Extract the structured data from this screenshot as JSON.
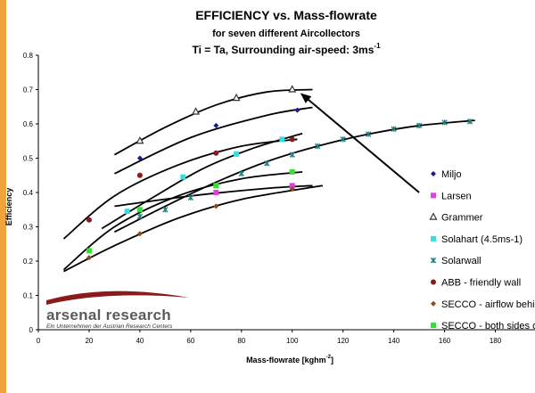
{
  "chart_data": {
    "type": "scatter",
    "title": "EFFICIENCY vs. Mass-flowrate",
    "subtitle": "for seven different Aircollectors",
    "subtitle2": "Ti = Ta, Surrounding air-speed: 3ms",
    "subtitle2_sup": "-1",
    "xlabel": "Mass-flowrate [kghm",
    "xlabel_sup": "-2",
    "xlabel_end": "]",
    "ylabel": "Efficiency",
    "xlim": [
      0,
      190
    ],
    "ylim": [
      0,
      0.8
    ],
    "x_ticks": [
      0,
      20,
      40,
      60,
      80,
      100,
      120,
      140,
      160,
      180
    ],
    "y_ticks": [
      0,
      0.1,
      0.2,
      0.3,
      0.4,
      0.5,
      0.6,
      0.7,
      0.8
    ],
    "y_tick_labels": [
      "0",
      "0.1",
      "0.2",
      "0.3",
      "0.4",
      "0.5",
      "0.6",
      "0.7",
      "0.8"
    ],
    "grid": false,
    "legend_position": "right",
    "series": [
      {
        "name": "Miljo",
        "marker": "diamond",
        "color": "#1a1a8c",
        "points": [
          [
            40,
            0.5
          ],
          [
            70,
            0.595
          ],
          [
            102,
            0.64
          ]
        ],
        "curve": [
          [
            30,
            0.455
          ],
          [
            60,
            0.56
          ],
          [
            90,
            0.625
          ],
          [
            108,
            0.648
          ]
        ]
      },
      {
        "name": "Larsen",
        "marker": "square",
        "color": "#e040e0",
        "points": [
          [
            70,
            0.4
          ],
          [
            100,
            0.42
          ]
        ],
        "curve": [
          [
            30,
            0.36
          ],
          [
            60,
            0.39
          ],
          [
            90,
            0.412
          ],
          [
            108,
            0.42
          ]
        ]
      },
      {
        "name": "Grammer",
        "marker": "triangle",
        "color": "#333333",
        "points": [
          [
            40,
            0.55
          ],
          [
            62,
            0.635
          ],
          [
            78,
            0.675
          ],
          [
            100,
            0.7
          ]
        ],
        "curve": [
          [
            30,
            0.51
          ],
          [
            50,
            0.59
          ],
          [
            70,
            0.655
          ],
          [
            90,
            0.693
          ],
          [
            108,
            0.7
          ]
        ]
      },
      {
        "name": "Solahart (4.5ms-1)",
        "marker": "square",
        "color": "#33e0e0",
        "points": [
          [
            35,
            0.345
          ],
          [
            57,
            0.445
          ],
          [
            78,
            0.512
          ],
          [
            96,
            0.555
          ]
        ],
        "curve": [
          [
            25,
            0.295
          ],
          [
            45,
            0.385
          ],
          [
            65,
            0.47
          ],
          [
            85,
            0.53
          ],
          [
            104,
            0.572
          ]
        ]
      },
      {
        "name": "Solarwall",
        "marker": "star",
        "color": "#208080",
        "points": [
          [
            40,
            0.33
          ],
          [
            50,
            0.35
          ],
          [
            60,
            0.385
          ],
          [
            70,
            0.42
          ],
          [
            80,
            0.455
          ],
          [
            90,
            0.485
          ],
          [
            100,
            0.51
          ],
          [
            110,
            0.535
          ],
          [
            120,
            0.555
          ],
          [
            130,
            0.57
          ],
          [
            140,
            0.585
          ],
          [
            150,
            0.595
          ],
          [
            160,
            0.604
          ],
          [
            170,
            0.607
          ]
        ],
        "curve": [
          [
            30,
            0.285
          ],
          [
            50,
            0.36
          ],
          [
            70,
            0.43
          ],
          [
            90,
            0.49
          ],
          [
            110,
            0.535
          ],
          [
            130,
            0.57
          ],
          [
            150,
            0.595
          ],
          [
            172,
            0.61
          ]
        ]
      },
      {
        "name": "ABB - friendly wall",
        "marker": "circle",
        "color": "#8b1a1a",
        "points": [
          [
            20,
            0.32
          ],
          [
            40,
            0.45
          ],
          [
            70,
            0.515
          ],
          [
            100,
            0.555
          ]
        ],
        "curve": [
          [
            10,
            0.265
          ],
          [
            30,
            0.39
          ],
          [
            55,
            0.48
          ],
          [
            80,
            0.535
          ],
          [
            102,
            0.555
          ]
        ]
      },
      {
        "name": "SECCO - airflow behind absorber",
        "marker": "diamond",
        "color": "#8b4a1a",
        "points": [
          [
            20,
            0.21
          ],
          [
            40,
            0.28
          ],
          [
            70,
            0.36
          ],
          [
            100,
            0.41
          ]
        ],
        "curve": [
          [
            10,
            0.17
          ],
          [
            30,
            0.245
          ],
          [
            55,
            0.325
          ],
          [
            80,
            0.38
          ],
          [
            112,
            0.42
          ]
        ]
      },
      {
        "name": "SECCO - both sides of absorber",
        "marker": "square",
        "color": "#33e033",
        "points": [
          [
            20,
            0.23
          ],
          [
            40,
            0.35
          ],
          [
            70,
            0.42
          ],
          [
            100,
            0.46
          ]
        ],
        "curve": [
          [
            10,
            0.175
          ],
          [
            30,
            0.3
          ],
          [
            55,
            0.39
          ],
          [
            80,
            0.44
          ],
          [
            104,
            0.46
          ]
        ]
      }
    ]
  },
  "legend": {
    "items": [
      "Miljo",
      "Larsen",
      "Grammer",
      "Solahart (4.5ms-1)",
      "Solarwall",
      "ABB - friendly wall",
      "SECCO - airflow behind absorber",
      "SECCO - both sides of absorber"
    ]
  },
  "annotation": {
    "type": "arrow",
    "from": [
      150,
      0.4
    ],
    "to": [
      104,
      0.685
    ]
  },
  "logo": {
    "name": "arsenal research",
    "tagline": "Ein Unternehmen der Austrian Research Centers",
    "colors": {
      "main": "#5a5a5a",
      "accent": "#8b1a1a"
    }
  },
  "page": {
    "accent_strip_color": "#f2a33a"
  }
}
